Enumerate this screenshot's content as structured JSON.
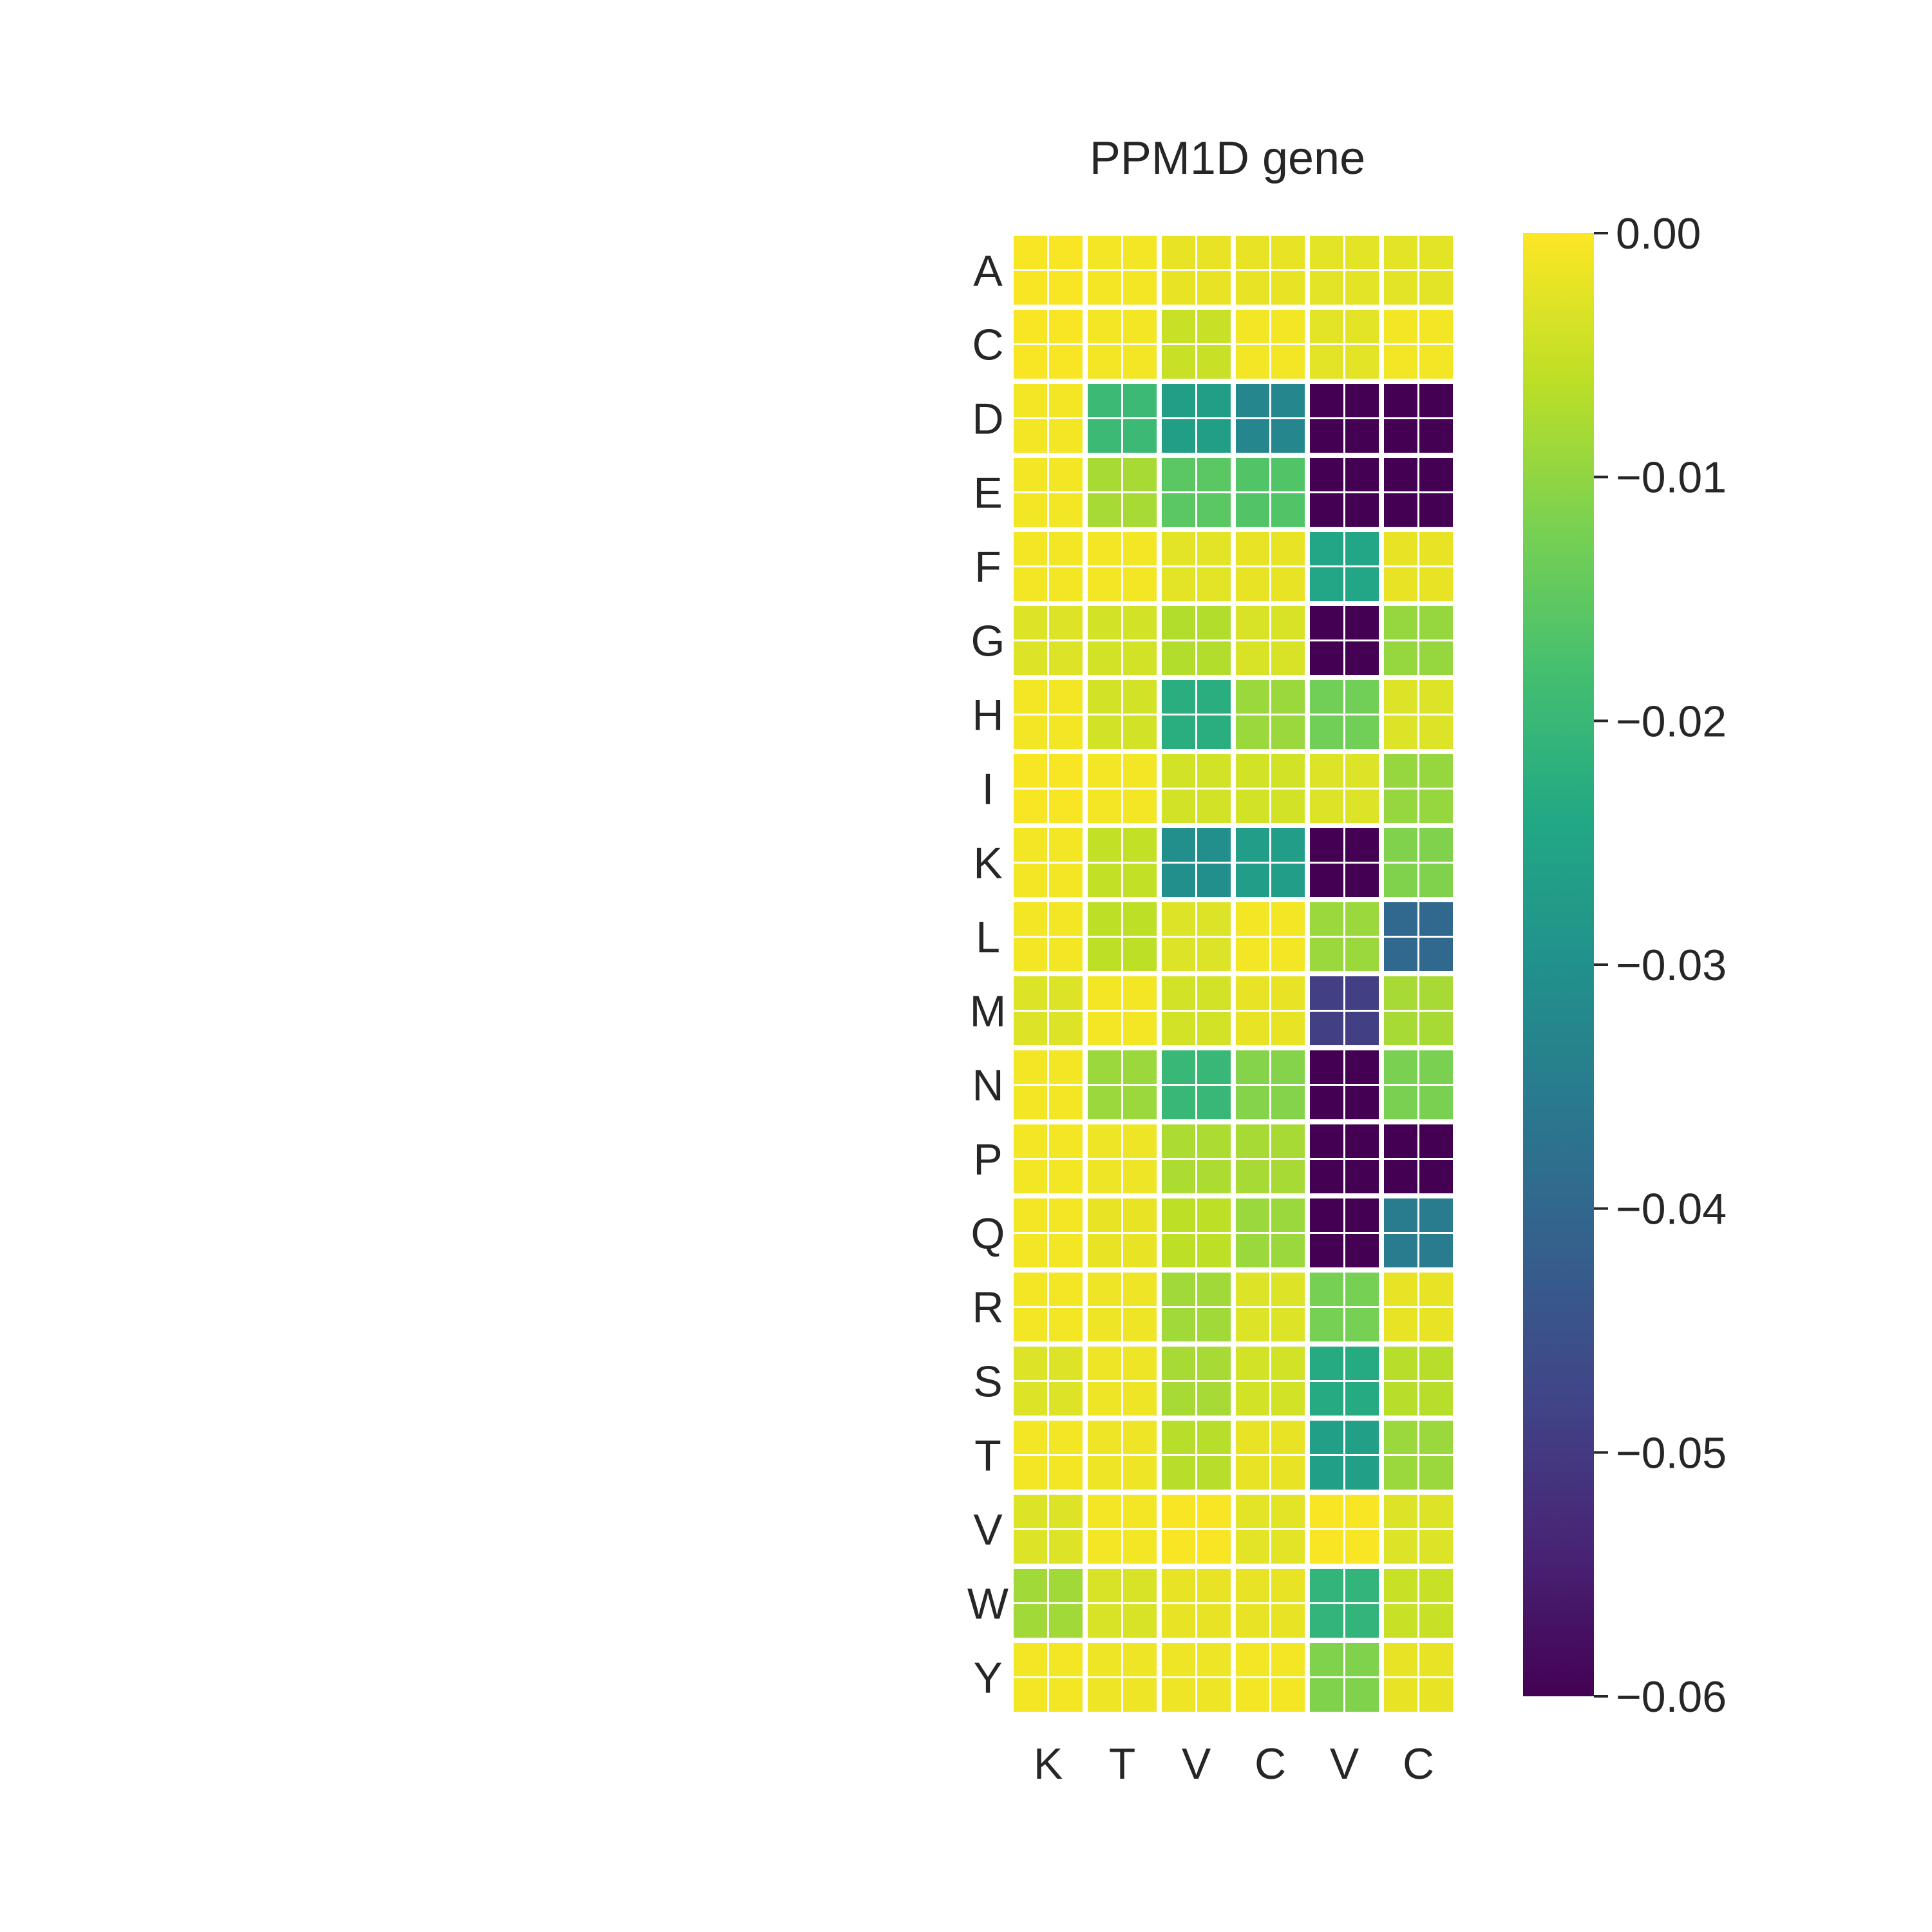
{
  "chart_data": {
    "type": "heatmap",
    "title": "PPM1D gene",
    "columns": [
      "K",
      "T",
      "V",
      "C",
      "V",
      "C"
    ],
    "rows": [
      "A",
      "C",
      "D",
      "E",
      "F",
      "G",
      "H",
      "I",
      "K",
      "L",
      "M",
      "N",
      "P",
      "Q",
      "R",
      "S",
      "T",
      "V",
      "W",
      "Y"
    ],
    "values": [
      [
        -0.0005,
        -0.001,
        -0.002,
        -0.002,
        -0.0025,
        -0.0025
      ],
      [
        -0.0005,
        -0.001,
        -0.005,
        -0.001,
        -0.0025,
        -0.001
      ],
      [
        -0.001,
        -0.0195,
        -0.0265,
        -0.0325,
        -0.06,
        -0.06
      ],
      [
        -0.001,
        -0.008,
        -0.0155,
        -0.0165,
        -0.06,
        -0.06
      ],
      [
        -0.001,
        -0.001,
        -0.0025,
        -0.002,
        -0.0245,
        -0.002
      ],
      [
        -0.003,
        -0.004,
        -0.007,
        -0.0035,
        -0.06,
        -0.0095
      ],
      [
        -0.001,
        -0.004,
        -0.0225,
        -0.009,
        -0.013,
        -0.003
      ],
      [
        -0.0005,
        -0.001,
        -0.004,
        -0.004,
        -0.003,
        -0.0095
      ],
      [
        -0.001,
        -0.0055,
        -0.0305,
        -0.027,
        -0.06,
        -0.0115
      ],
      [
        -0.001,
        -0.006,
        -0.003,
        -0.001,
        -0.009,
        -0.0395
      ],
      [
        -0.003,
        -0.001,
        -0.004,
        -0.002,
        -0.049,
        -0.008
      ],
      [
        -0.001,
        -0.009,
        -0.02,
        -0.011,
        -0.06,
        -0.012
      ],
      [
        -0.001,
        -0.0015,
        -0.0075,
        -0.008,
        -0.06,
        -0.06
      ],
      [
        -0.001,
        -0.002,
        -0.006,
        -0.009,
        -0.06,
        -0.035
      ],
      [
        -0.001,
        -0.0015,
        -0.0085,
        -0.003,
        -0.0125,
        -0.002
      ],
      [
        -0.003,
        -0.0015,
        -0.008,
        -0.004,
        -0.0235,
        -0.0065
      ],
      [
        -0.001,
        -0.0015,
        -0.0065,
        -0.002,
        -0.026,
        -0.009
      ],
      [
        -0.003,
        -0.001,
        -0.0005,
        -0.0025,
        -0.0005,
        -0.003
      ],
      [
        -0.0085,
        -0.0035,
        -0.002,
        -0.002,
        -0.021,
        -0.005
      ],
      [
        -0.001,
        -0.0015,
        -0.0015,
        -0.001,
        -0.0115,
        -0.002
      ]
    ],
    "colorbar": {
      "min": -0.06,
      "max": 0.0,
      "ticks": [
        0.0,
        -0.01,
        -0.02,
        -0.03,
        -0.04,
        -0.05,
        -0.06
      ],
      "tick_labels": [
        "0.00",
        "−0.01",
        "−0.02",
        "−0.03",
        "−0.04",
        "−0.05",
        "−0.06"
      ],
      "colormap": "viridis"
    }
  }
}
